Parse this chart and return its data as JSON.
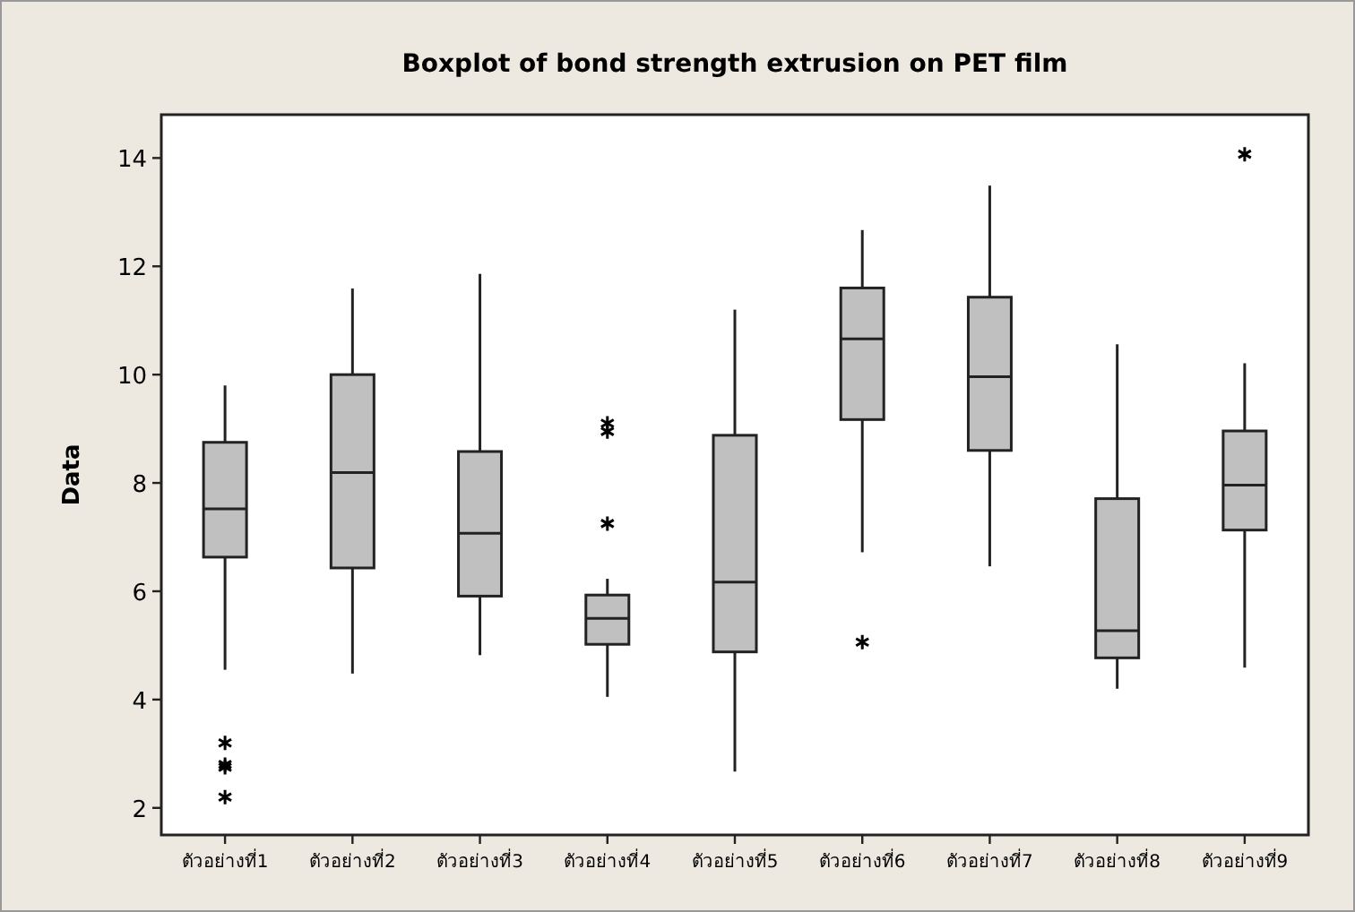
{
  "chart_data": {
    "type": "box",
    "title": "Boxplot of bond strength extrusion on PET film",
    "ylabel": "Data",
    "categories": [
      "ตัวอย่างที่1",
      "ตัวอย่างที่2",
      "ตัวอย่างที่3",
      "ตัวอย่างที่4",
      "ตัวอย่างที่5",
      "ตัวอย่างที่6",
      "ตัวอย่างที่7",
      "ตัวอย่างที่8",
      "ตัวอย่างที่9"
    ],
    "boxes": [
      {
        "low": 4.55,
        "q1": 6.63,
        "median": 7.52,
        "q3": 8.75,
        "high": 9.8,
        "outliers": [
          3.2,
          2.8,
          2.75,
          2.2
        ]
      },
      {
        "low": 4.48,
        "q1": 6.43,
        "median": 8.19,
        "q3": 10.0,
        "high": 11.59
      },
      {
        "low": 4.82,
        "q1": 5.91,
        "median": 7.07,
        "q3": 8.58,
        "high": 11.86
      },
      {
        "low": 4.05,
        "q1": 5.02,
        "median": 5.5,
        "q3": 5.93,
        "high": 6.23,
        "outliers": [
          9.1,
          8.95,
          7.25
        ]
      },
      {
        "low": 2.67,
        "q1": 4.88,
        "median": 6.17,
        "q3": 8.88,
        "high": 11.2
      },
      {
        "low": 6.72,
        "q1": 9.17,
        "median": 10.66,
        "q3": 11.6,
        "high": 12.67,
        "outliers": [
          5.06
        ]
      },
      {
        "low": 6.46,
        "q1": 8.6,
        "median": 9.96,
        "q3": 11.43,
        "high": 13.49
      },
      {
        "low": 4.2,
        "q1": 4.77,
        "median": 5.27,
        "q3": 7.71,
        "high": 10.56
      },
      {
        "low": 4.59,
        "q1": 7.13,
        "median": 7.96,
        "q3": 8.96,
        "high": 10.21,
        "outliers": [
          14.07
        ]
      }
    ],
    "color": "#c0c0c0",
    "ylim": [
      1.5,
      14.8
    ],
    "yticks": [
      2,
      4,
      6,
      8,
      10,
      12,
      14
    ],
    "marker": "star"
  }
}
